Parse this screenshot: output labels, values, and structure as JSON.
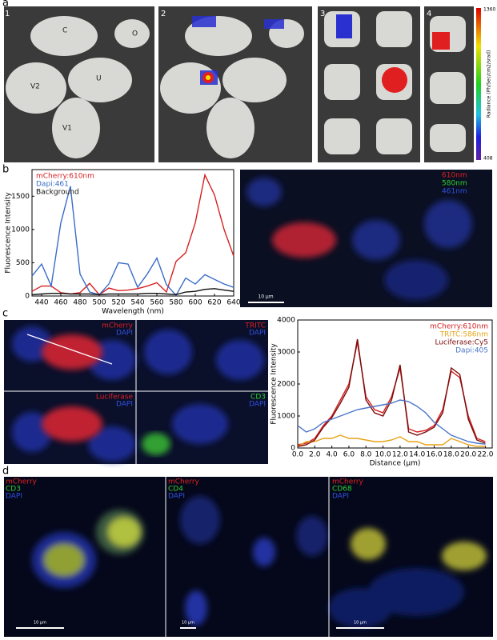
{
  "panel_a": {
    "label": "a",
    "image_numbers": [
      "1",
      "2",
      "3",
      "4"
    ],
    "organ_labels": [
      "C",
      "O",
      "V2",
      "U",
      "V1"
    ],
    "colorbar": {
      "max": "1360",
      "min": "408",
      "title": "Radiance (Ph/Sec/cm2/srad)"
    }
  },
  "panel_b": {
    "label": "b",
    "image": {
      "channels": [
        "610nm",
        "580nm",
        "461nm"
      ],
      "scale_bar": "10 μm"
    }
  },
  "panel_c": {
    "label": "c",
    "tiles": [
      [
        "mCherry",
        "DAPI"
      ],
      [
        "TRITC",
        "DAPI"
      ],
      [
        "Luciferase",
        "DAPI"
      ],
      [
        "CD3",
        "DAPI"
      ]
    ]
  },
  "panel_d": {
    "label": "d",
    "images": [
      {
        "channels": [
          "mCherry",
          "CD3",
          "DAPI"
        ],
        "scale_bar": "10 μm"
      },
      {
        "channels": [
          "mCherry",
          "CD4",
          "DAPI"
        ],
        "scale_bar": "10 μm"
      },
      {
        "channels": [
          "mCherry",
          "CD68",
          "DAPI"
        ],
        "scale_bar": "10 μm"
      }
    ]
  },
  "chart_data": [
    {
      "type": "line",
      "x_label": "Wavelength (nm)",
      "y_label": "Fluorescence Intensity",
      "legend": "upper left",
      "x": [
        430,
        440,
        450,
        460,
        470,
        480,
        490,
        500,
        510,
        520,
        530,
        540,
        550,
        560,
        570,
        580,
        590,
        600,
        610,
        620,
        630,
        640
      ],
      "xlim": [
        430,
        640
      ],
      "xticks": [
        440,
        460,
        480,
        500,
        520,
        540,
        560,
        580,
        600,
        620,
        640
      ],
      "ylim": [
        0,
        1900
      ],
      "yticks": [
        0,
        500,
        1000,
        1500
      ],
      "series": [
        {
          "name": "mCherry:610nm",
          "color": "#d62020",
          "values": [
            70,
            150,
            150,
            50,
            30,
            50,
            190,
            20,
            120,
            80,
            90,
            110,
            150,
            200,
            60,
            520,
            650,
            1100,
            1820,
            1520,
            1000,
            600
          ]
        },
        {
          "name": "Dapi:461",
          "color": "#3a6cc8",
          "values": [
            300,
            480,
            150,
            1100,
            1650,
            330,
            60,
            20,
            180,
            500,
            480,
            130,
            330,
            570,
            170,
            10,
            270,
            180,
            320,
            250,
            180,
            130
          ]
        },
        {
          "name": "Background",
          "color": "#111111",
          "values": [
            20,
            30,
            40,
            40,
            30,
            30,
            30,
            20,
            30,
            30,
            30,
            30,
            40,
            40,
            30,
            20,
            60,
            70,
            100,
            110,
            90,
            70
          ]
        }
      ]
    },
    {
      "type": "line",
      "x_label": "Distance (μm)",
      "y_label": "Fluorescence Intensity",
      "legend": "upper right",
      "x": [
        0,
        1,
        2,
        3,
        4,
        5,
        6,
        7,
        8,
        9,
        10,
        11,
        12,
        13,
        14,
        15,
        16,
        17,
        18,
        19,
        20,
        21,
        22
      ],
      "xlim": [
        0,
        22.8
      ],
      "xticks": [
        {
          "value": 0,
          "label": "0.0"
        },
        {
          "value": 2,
          "label": "2.0"
        },
        {
          "value": 4,
          "label": "4.0"
        },
        {
          "value": 6,
          "label": "6.0"
        },
        {
          "value": 8,
          "label": "8.0"
        },
        {
          "value": 10,
          "label": "10.0"
        },
        {
          "value": 12,
          "label": "12.0"
        },
        {
          "value": 14,
          "label": "14.0"
        },
        {
          "value": 16,
          "label": "16.0"
        },
        {
          "value": 18,
          "label": "18.0"
        },
        {
          "value": 20,
          "label": "20.0"
        },
        {
          "value": 22,
          "label": "22.0"
        }
      ],
      "ylim": [
        0,
        4000
      ],
      "yticks": [
        0,
        1000,
        2000,
        3000,
        4000
      ],
      "series": [
        {
          "name": "mCherry:610nm",
          "color": "#d42020",
          "values": [
            100,
            150,
            300,
            700,
            1000,
            1500,
            2000,
            3300,
            1600,
            1200,
            1100,
            1600,
            2500,
            600,
            500,
            550,
            700,
            1200,
            2400,
            2200,
            1000,
            300,
            200
          ]
        },
        {
          "name": "TRITC:586nm",
          "color": "#e8a317",
          "values": [
            50,
            200,
            200,
            300,
            300,
            400,
            300,
            300,
            250,
            200,
            200,
            250,
            350,
            200,
            200,
            100,
            100,
            100,
            300,
            200,
            100,
            50,
            50
          ]
        },
        {
          "name": "Luciferase:Cy5",
          "color": "#7a0a0a",
          "values": [
            50,
            100,
            250,
            650,
            950,
            1400,
            1900,
            3400,
            1500,
            1100,
            1000,
            1500,
            2600,
            500,
            400,
            500,
            650,
            1100,
            2500,
            2300,
            900,
            250,
            150
          ]
        },
        {
          "name": "Dapi:405",
          "color": "#4a74c9",
          "values": [
            700,
            500,
            600,
            800,
            900,
            1000,
            1100,
            1200,
            1250,
            1300,
            1350,
            1400,
            1500,
            1450,
            1300,
            1100,
            800,
            600,
            400,
            300,
            200,
            150,
            120
          ]
        }
      ]
    }
  ]
}
